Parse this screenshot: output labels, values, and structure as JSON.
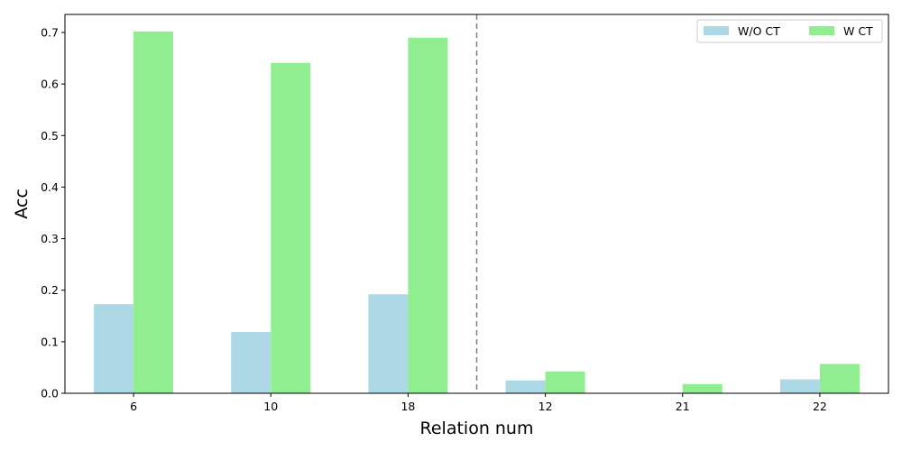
{
  "chart_data": {
    "type": "bar",
    "categories": [
      "6",
      "10",
      "18",
      "12",
      "21",
      "22"
    ],
    "series": [
      {
        "name": "W/O CT",
        "color": "#add8e6",
        "values": [
          0.173,
          0.119,
          0.192,
          0.025,
          0.0,
          0.027
        ]
      },
      {
        "name": "W CT",
        "color": "#90ee90",
        "values": [
          0.702,
          0.641,
          0.69,
          0.042,
          0.018,
          0.057
        ]
      }
    ],
    "xlabel": "Relation num",
    "ylabel": "Acc",
    "ylim": [
      0,
      0.735
    ],
    "yticks": [
      "0.0",
      "0.1",
      "0.2",
      "0.3",
      "0.4",
      "0.5",
      "0.6",
      "0.7"
    ],
    "separator_after_category_index": 2,
    "separator_color": "#808080",
    "grid": false,
    "legend": "top-right",
    "legend_columns": 2
  }
}
